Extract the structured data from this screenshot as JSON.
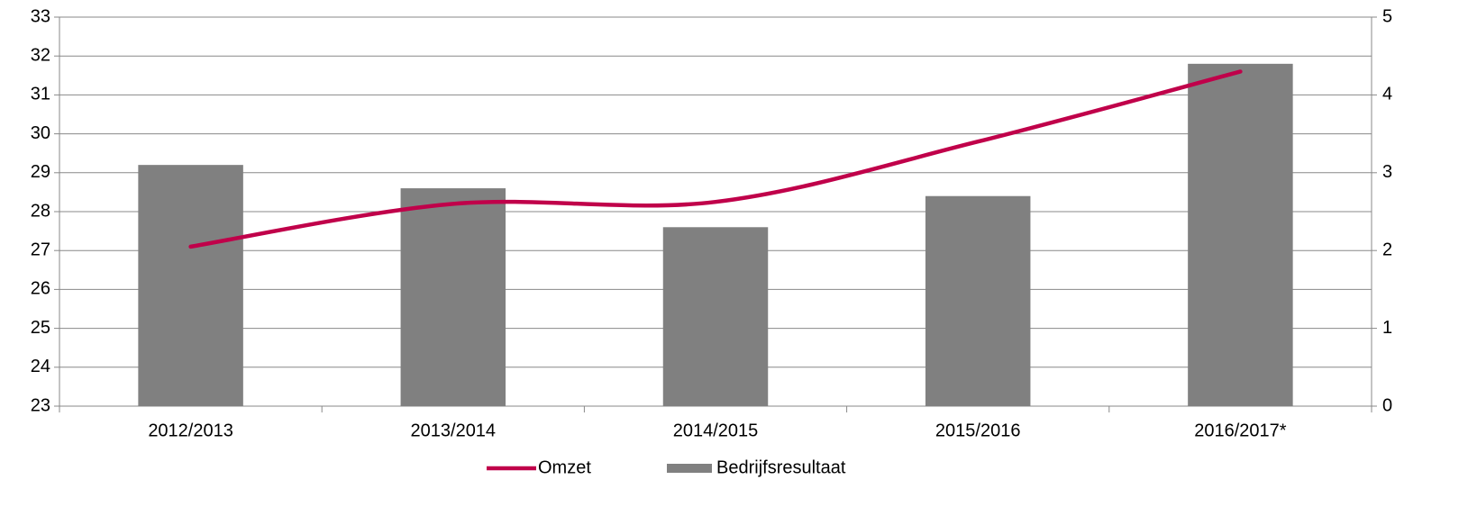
{
  "chart_data": {
    "type": "bar-line",
    "categories": [
      "2012/2013",
      "2013/2014",
      "2014/2015",
      "2015/2016",
      "2016/2017*"
    ],
    "series": [
      {
        "name": "Omzet",
        "type": "line",
        "color": "#c0004a",
        "values": [
          27.1,
          28.2,
          28.25,
          29.8,
          31.6
        ]
      },
      {
        "name": "Bedrijfsresultaat",
        "type": "bar",
        "axis": "y2",
        "color": "#808080",
        "values": [
          3.1,
          2.8,
          2.3,
          2.7,
          4.4
        ]
      }
    ],
    "ylim": [
      23,
      33
    ],
    "yticks": [
      23,
      24,
      25,
      26,
      27,
      28,
      29,
      30,
      31,
      32,
      33
    ],
    "y2lim": [
      0,
      5
    ],
    "y2ticks": [
      0,
      1,
      2,
      3,
      4,
      5
    ],
    "grid": true,
    "legend": "bottom"
  }
}
